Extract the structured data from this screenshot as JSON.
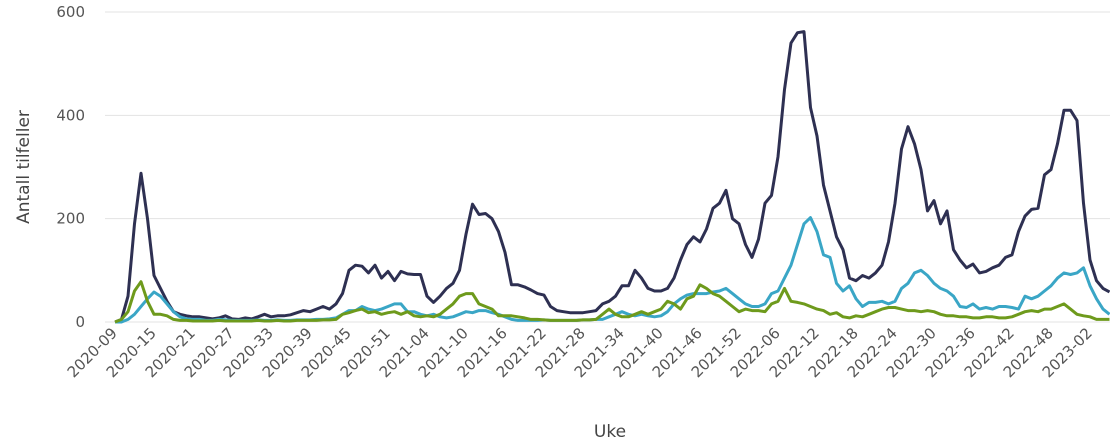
{
  "chart_data": {
    "type": "line",
    "ylabel": "Antall tilfeller",
    "xlabel": "Uke",
    "categories": [
      "2020-09",
      null,
      null,
      null,
      null,
      null,
      "2020-15",
      null,
      null,
      null,
      null,
      null,
      "2020-21",
      null,
      null,
      null,
      null,
      null,
      "2020-27",
      null,
      null,
      null,
      null,
      null,
      "2020-33",
      null,
      null,
      null,
      null,
      null,
      "2020-39",
      null,
      null,
      null,
      null,
      null,
      "2020-45",
      null,
      null,
      null,
      null,
      null,
      "2020-51",
      null,
      null,
      null,
      null,
      null,
      "2021-04",
      null,
      null,
      null,
      null,
      null,
      "2021-10",
      null,
      null,
      null,
      null,
      null,
      "2021-16",
      null,
      null,
      null,
      null,
      null,
      "2021-22",
      null,
      null,
      null,
      null,
      null,
      "2021-28",
      null,
      null,
      null,
      null,
      null,
      "2021-34",
      null,
      null,
      null,
      null,
      null,
      "2021-40",
      null,
      null,
      null,
      null,
      null,
      "2021-46",
      null,
      null,
      null,
      null,
      null,
      "2021-52",
      null,
      null,
      null,
      null,
      null,
      "2022-06",
      null,
      null,
      null,
      null,
      null,
      "2022-12",
      null,
      null,
      null,
      null,
      null,
      "2022-18",
      null,
      null,
      null,
      null,
      null,
      "2022-24",
      null,
      null,
      null,
      null,
      null,
      "2022-30",
      null,
      null,
      null,
      null,
      null,
      "2022-36",
      null,
      null,
      null,
      null,
      null,
      "2022-42",
      null,
      null,
      null,
      null,
      null,
      "2022-48",
      null,
      null,
      null,
      null,
      null,
      "2023-02",
      null,
      null,
      null
    ],
    "series": [
      {
        "color": "#2e3052",
        "values": [
          0,
          5,
          50,
          190,
          288,
          200,
          90,
          65,
          40,
          20,
          15,
          12,
          10,
          10,
          8,
          6,
          8,
          12,
          6,
          5,
          8,
          6,
          10,
          15,
          10,
          12,
          12,
          14,
          18,
          22,
          20,
          25,
          30,
          25,
          35,
          55,
          100,
          110,
          108,
          95,
          110,
          85,
          98,
          80,
          98,
          93,
          92,
          92,
          50,
          38,
          50,
          65,
          75,
          100,
          170,
          228,
          208,
          210,
          200,
          175,
          135,
          72,
          72,
          68,
          62,
          55,
          52,
          30,
          22,
          20,
          18,
          18,
          18,
          20,
          22,
          35,
          40,
          50,
          70,
          70,
          100,
          85,
          65,
          60,
          60,
          65,
          85,
          120,
          150,
          165,
          155,
          180,
          220,
          230,
          255,
          200,
          190,
          150,
          125,
          160,
          230,
          245,
          320,
          450,
          540,
          560,
          562,
          415,
          360,
          265,
          215,
          165,
          140,
          85,
          80,
          90,
          85,
          95,
          110,
          155,
          230,
          335,
          378,
          345,
          295,
          215,
          235,
          190,
          215,
          140,
          120,
          105,
          112,
          95,
          98,
          105,
          110,
          125,
          130,
          175,
          205,
          218,
          220,
          285,
          295,
          345,
          410,
          410,
          390,
          230,
          120,
          80,
          65,
          58
        ]
      },
      {
        "color": "#3aa6c6",
        "values": [
          0,
          0,
          5,
          15,
          30,
          45,
          58,
          50,
          35,
          20,
          10,
          6,
          5,
          5,
          3,
          3,
          5,
          4,
          3,
          3,
          3,
          3,
          4,
          3,
          3,
          4,
          3,
          3,
          4,
          4,
          4,
          5,
          5,
          6,
          8,
          15,
          22,
          22,
          30,
          25,
          22,
          25,
          30,
          35,
          35,
          20,
          20,
          15,
          12,
          15,
          10,
          8,
          10,
          15,
          20,
          18,
          22,
          22,
          18,
          15,
          10,
          5,
          3,
          3,
          3,
          3,
          4,
          3,
          3,
          3,
          3,
          3,
          4,
          4,
          5,
          5,
          10,
          15,
          20,
          15,
          12,
          15,
          12,
          10,
          12,
          20,
          35,
          45,
          52,
          55,
          55,
          55,
          58,
          60,
          65,
          55,
          45,
          35,
          30,
          30,
          35,
          55,
          60,
          85,
          110,
          150,
          190,
          202,
          175,
          130,
          125,
          75,
          60,
          70,
          45,
          30,
          38,
          38,
          40,
          35,
          40,
          65,
          75,
          95,
          100,
          90,
          75,
          65,
          60,
          50,
          30,
          28,
          35,
          25,
          28,
          25,
          30,
          30,
          28,
          25,
          50,
          45,
          50,
          60,
          70,
          85,
          95,
          92,
          95,
          105,
          70,
          45,
          25,
          15
        ]
      },
      {
        "color": "#6e9a1c",
        "values": [
          0,
          5,
          20,
          60,
          78,
          40,
          15,
          15,
          12,
          5,
          3,
          3,
          2,
          2,
          2,
          2,
          3,
          2,
          2,
          2,
          2,
          2,
          3,
          2,
          2,
          3,
          2,
          2,
          3,
          3,
          3,
          3,
          4,
          4,
          5,
          15,
          18,
          22,
          25,
          18,
          20,
          15,
          18,
          20,
          15,
          20,
          12,
          10,
          12,
          10,
          15,
          25,
          35,
          50,
          55,
          55,
          35,
          30,
          25,
          12,
          12,
          12,
          10,
          8,
          5,
          5,
          4,
          3,
          3,
          3,
          3,
          3,
          4,
          4,
          5,
          15,
          25,
          15,
          10,
          10,
          15,
          20,
          15,
          20,
          25,
          40,
          35,
          25,
          45,
          50,
          72,
          65,
          55,
          50,
          40,
          30,
          20,
          25,
          22,
          22,
          20,
          35,
          40,
          65,
          40,
          38,
          35,
          30,
          25,
          22,
          15,
          18,
          10,
          8,
          12,
          10,
          15,
          20,
          25,
          28,
          28,
          25,
          22,
          22,
          20,
          22,
          20,
          15,
          12,
          12,
          10,
          10,
          8,
          8,
          10,
          10,
          8,
          8,
          10,
          15,
          20,
          22,
          20,
          25,
          25,
          30,
          35,
          25,
          15,
          12,
          10,
          5,
          5,
          5
        ]
      }
    ],
    "ylim": [
      0,
      600
    ],
    "yticks": [
      0,
      200,
      400,
      600
    ],
    "grid": true
  }
}
